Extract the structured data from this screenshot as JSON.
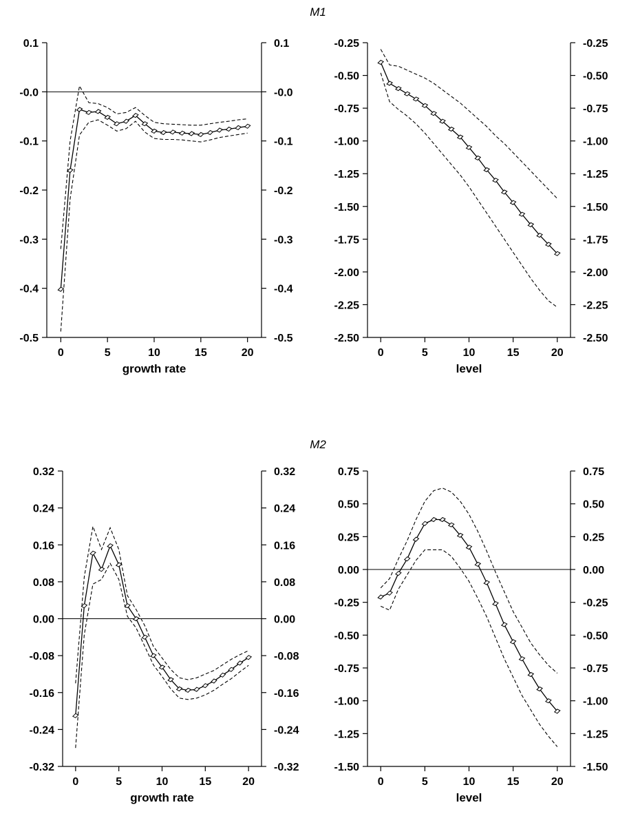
{
  "panel_titles": [
    "M1",
    "M2"
  ],
  "chart_data": [
    {
      "type": "line",
      "panel_title": "M1",
      "xlabel": "growth rate",
      "ylabel": "",
      "xlim": [
        -1.5,
        21.5
      ],
      "ylim": [
        -0.5,
        0.1
      ],
      "xticks": [
        0,
        5,
        10,
        15,
        20
      ],
      "xtick_labels": [
        "0",
        "5",
        "10",
        "15",
        "20"
      ],
      "yticks": [
        0.1,
        0.0,
        -0.1,
        -0.2,
        -0.3,
        -0.4,
        -0.5
      ],
      "ytick_labels": [
        "0.1",
        "-0.0",
        "-0.1",
        "-0.2",
        "-0.3",
        "-0.4",
        "-0.5"
      ],
      "right_axis": true,
      "zero_line": true,
      "grid": false,
      "x": [
        0,
        1,
        2,
        3,
        4,
        5,
        6,
        7,
        8,
        9,
        10,
        11,
        12,
        13,
        14,
        15,
        16,
        17,
        18,
        19,
        20
      ],
      "series": [
        {
          "style": "solid-diamond",
          "values": [
            -0.402,
            -0.16,
            -0.036,
            -0.042,
            -0.04,
            -0.052,
            -0.065,
            -0.06,
            -0.048,
            -0.065,
            -0.08,
            -0.083,
            -0.082,
            -0.084,
            -0.085,
            -0.087,
            -0.083,
            -0.078,
            -0.076,
            -0.073,
            -0.07
          ]
        },
        {
          "style": "dashed",
          "values": [
            -0.32,
            -0.1,
            0.012,
            -0.022,
            -0.024,
            -0.032,
            -0.045,
            -0.042,
            -0.032,
            -0.048,
            -0.062,
            -0.065,
            -0.066,
            -0.067,
            -0.068,
            -0.068,
            -0.065,
            -0.062,
            -0.06,
            -0.057,
            -0.055
          ]
        },
        {
          "style": "dashed",
          "values": [
            -0.488,
            -0.218,
            -0.088,
            -0.062,
            -0.057,
            -0.068,
            -0.08,
            -0.075,
            -0.06,
            -0.082,
            -0.095,
            -0.097,
            -0.097,
            -0.098,
            -0.1,
            -0.102,
            -0.098,
            -0.093,
            -0.09,
            -0.087,
            -0.084
          ]
        }
      ]
    },
    {
      "type": "line",
      "panel_title": "M1",
      "xlabel": "level",
      "ylabel": "",
      "xlim": [
        -1.5,
        21.5
      ],
      "ylim": [
        -2.5,
        -0.25
      ],
      "xticks": [
        0,
        5,
        10,
        15,
        20
      ],
      "xtick_labels": [
        "0",
        "5",
        "10",
        "15",
        "20"
      ],
      "yticks": [
        -0.25,
        -0.5,
        -0.75,
        -1.0,
        -1.25,
        -1.5,
        -1.75,
        -2.0,
        -2.25,
        -2.5
      ],
      "ytick_labels": [
        "-0.25",
        "-0.50",
        "-0.75",
        "-1.00",
        "-1.25",
        "-1.50",
        "-1.75",
        "-2.00",
        "-2.25",
        "-2.50"
      ],
      "right_axis": true,
      "zero_line": false,
      "grid": false,
      "x": [
        0,
        1,
        2,
        3,
        4,
        5,
        6,
        7,
        8,
        9,
        10,
        11,
        12,
        13,
        14,
        15,
        16,
        17,
        18,
        19,
        20
      ],
      "series": [
        {
          "style": "solid-diamond",
          "values": [
            -0.4,
            -0.56,
            -0.6,
            -0.64,
            -0.68,
            -0.73,
            -0.79,
            -0.85,
            -0.91,
            -0.97,
            -1.05,
            -1.13,
            -1.22,
            -1.3,
            -1.39,
            -1.47,
            -1.56,
            -1.64,
            -1.72,
            -1.79,
            -1.86
          ]
        },
        {
          "style": "dashed",
          "values": [
            -0.3,
            -0.42,
            -0.43,
            -0.46,
            -0.49,
            -0.52,
            -0.56,
            -0.61,
            -0.66,
            -0.71,
            -0.77,
            -0.83,
            -0.89,
            -0.96,
            -1.02,
            -1.09,
            -1.16,
            -1.23,
            -1.3,
            -1.37,
            -1.44
          ]
        },
        {
          "style": "dashed",
          "values": [
            -0.48,
            -0.7,
            -0.76,
            -0.81,
            -0.87,
            -0.94,
            -1.02,
            -1.1,
            -1.18,
            -1.26,
            -1.35,
            -1.45,
            -1.55,
            -1.65,
            -1.75,
            -1.85,
            -1.95,
            -2.05,
            -2.14,
            -2.22,
            -2.27
          ]
        }
      ]
    },
    {
      "type": "line",
      "panel_title": "M2",
      "xlabel": "growth rate",
      "ylabel": "",
      "xlim": [
        -1.5,
        21.5
      ],
      "ylim": [
        -0.32,
        0.32
      ],
      "xticks": [
        0,
        5,
        10,
        15,
        20
      ],
      "xtick_labels": [
        "0",
        "5",
        "10",
        "15",
        "20"
      ],
      "yticks": [
        0.32,
        0.24,
        0.16,
        0.08,
        0.0,
        -0.08,
        -0.16,
        -0.24,
        -0.32
      ],
      "ytick_labels": [
        "0.32",
        "0.24",
        "0.16",
        "0.08",
        "0.00",
        "-0.08",
        "-0.16",
        "-0.24",
        "-0.32"
      ],
      "right_axis": true,
      "zero_line": true,
      "grid": false,
      "x": [
        0,
        1,
        2,
        3,
        4,
        5,
        6,
        7,
        8,
        9,
        10,
        11,
        12,
        13,
        14,
        15,
        16,
        17,
        18,
        19,
        20
      ],
      "series": [
        {
          "style": "solid-diamond",
          "values": [
            -0.21,
            0.028,
            0.142,
            0.107,
            0.158,
            0.117,
            0.028,
            0.0,
            -0.04,
            -0.08,
            -0.105,
            -0.132,
            -0.152,
            -0.155,
            -0.153,
            -0.145,
            -0.135,
            -0.122,
            -0.11,
            -0.096,
            -0.084
          ]
        },
        {
          "style": "dashed",
          "values": [
            -0.14,
            0.09,
            0.2,
            0.15,
            0.197,
            0.15,
            0.05,
            0.02,
            -0.015,
            -0.06,
            -0.085,
            -0.11,
            -0.128,
            -0.132,
            -0.128,
            -0.12,
            -0.112,
            -0.1,
            -0.088,
            -0.078,
            -0.069
          ]
        },
        {
          "style": "dashed",
          "values": [
            -0.28,
            -0.035,
            0.075,
            0.085,
            0.12,
            0.085,
            0.005,
            -0.02,
            -0.06,
            -0.1,
            -0.125,
            -0.152,
            -0.172,
            -0.175,
            -0.172,
            -0.165,
            -0.155,
            -0.142,
            -0.13,
            -0.115,
            -0.101
          ]
        }
      ]
    },
    {
      "type": "line",
      "panel_title": "M2",
      "xlabel": "level",
      "ylabel": "",
      "xlim": [
        -1.5,
        21.5
      ],
      "ylim": [
        -1.5,
        0.75
      ],
      "xticks": [
        0,
        5,
        10,
        15,
        20
      ],
      "xtick_labels": [
        "0",
        "5",
        "10",
        "15",
        "20"
      ],
      "yticks": [
        0.75,
        0.5,
        0.25,
        0.0,
        -0.25,
        -0.5,
        -0.75,
        -1.0,
        -1.25,
        -1.5
      ],
      "ytick_labels": [
        "0.75",
        "0.50",
        "0.25",
        "0.00",
        "-0.25",
        "-0.50",
        "-0.75",
        "-1.00",
        "-1.25",
        "-1.50"
      ],
      "right_axis": true,
      "zero_line": true,
      "grid": false,
      "x": [
        0,
        1,
        2,
        3,
        4,
        5,
        6,
        7,
        8,
        9,
        10,
        11,
        12,
        13,
        14,
        15,
        16,
        17,
        18,
        19,
        20
      ],
      "series": [
        {
          "style": "solid-diamond",
          "values": [
            -0.21,
            -0.18,
            -0.03,
            0.08,
            0.23,
            0.35,
            0.38,
            0.38,
            0.34,
            0.26,
            0.17,
            0.04,
            -0.1,
            -0.26,
            -0.42,
            -0.55,
            -0.68,
            -0.8,
            -0.91,
            -1.0,
            -1.08
          ]
        },
        {
          "style": "dashed",
          "values": [
            -0.14,
            -0.07,
            0.08,
            0.22,
            0.38,
            0.52,
            0.6,
            0.62,
            0.59,
            0.52,
            0.42,
            0.29,
            0.14,
            -0.02,
            -0.17,
            -0.32,
            -0.44,
            -0.56,
            -0.65,
            -0.73,
            -0.79
          ]
        },
        {
          "style": "dashed",
          "values": [
            -0.28,
            -0.31,
            -0.15,
            -0.04,
            0.07,
            0.15,
            0.15,
            0.15,
            0.1,
            0.01,
            -0.09,
            -0.22,
            -0.36,
            -0.52,
            -0.68,
            -0.82,
            -0.96,
            -1.07,
            -1.18,
            -1.27,
            -1.35
          ]
        }
      ]
    }
  ]
}
